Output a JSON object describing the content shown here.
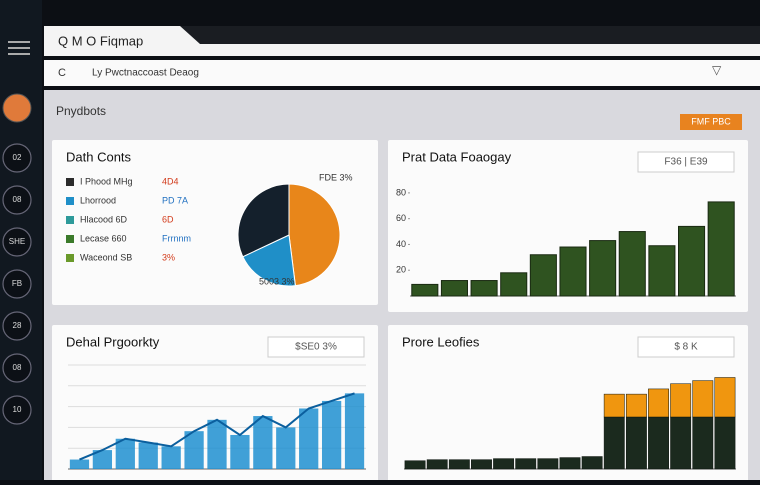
{
  "window": {
    "title": "Q M O Fiqmap",
    "address": "Ly Pwctnaccoast Deaog"
  },
  "page": {
    "heading": "Pnydbots",
    "button": "FMF PBC"
  },
  "sidebar": [
    "02",
    "08",
    "SHE",
    "FB",
    "28",
    "08",
    "10"
  ],
  "chart_data": [
    {
      "type": "pie",
      "title": "Dath Conts",
      "categories": [
        null,
        null,
        null
      ],
      "values": [
        48,
        20,
        32
      ],
      "colors": [
        "#e8861a",
        "#1f8fc8",
        "#14202c"
      ],
      "annotations": [
        "FDE 3%",
        "5003 3%"
      ],
      "legend_items": [
        {
          "label": "I Phood MHg",
          "value_text": "4D4",
          "color": "#2c2c2c"
        },
        {
          "label": "Lhorrood",
          "value_text": "PD 7A",
          "color": "#1f8fc8"
        },
        {
          "label": "Hlacood 6D",
          "value_text": "6D",
          "color": "#2d9a9a"
        },
        {
          "label": "Lecase 660",
          "value_text": "Frrnnm",
          "color": "#3b7a2a"
        },
        {
          "label": "Waceond SB",
          "value_text": "3%",
          "color": "#6a9a2a"
        }
      ]
    },
    {
      "type": "bar",
      "title": "Prat Data Foaogay",
      "badge": "F36 | E39",
      "categories": [
        null,
        null,
        null,
        null,
        null,
        null,
        null,
        null,
        null,
        null,
        null
      ],
      "values": [
        9,
        12,
        12,
        18,
        32,
        38,
        43,
        50,
        39,
        54,
        73
      ],
      "color": "#2f5320",
      "ylim": [
        0,
        90
      ],
      "yticks": [
        20,
        40,
        60,
        80
      ]
    },
    {
      "type": "area",
      "title": "Dehal Prgoorkty",
      "badge": "$SE0 3%",
      "categories": [
        null,
        null,
        null,
        null,
        null,
        null,
        null,
        null,
        null,
        null,
        null,
        null,
        null
      ],
      "values": [
        5,
        10,
        16,
        14,
        12,
        20,
        26,
        18,
        28,
        22,
        32,
        36,
        40
      ],
      "color": "#1e8fd0",
      "ylim": [
        0,
        55
      ]
    },
    {
      "type": "stacked",
      "title": "Prore Leofies",
      "badge": "$ 8 K",
      "categories": [
        null,
        null,
        null,
        null,
        null,
        null,
        null,
        null,
        null,
        null,
        null,
        null,
        null,
        null,
        null
      ],
      "series": [
        {
          "name": null,
          "color": "#1b2a1e",
          "values": [
            8,
            9,
            9,
            9,
            10,
            10,
            10,
            11,
            12,
            50,
            50,
            50,
            50,
            50,
            50
          ]
        },
        {
          "name": null,
          "color": "#f0960f",
          "values": [
            0,
            0,
            0,
            0,
            0,
            0,
            0,
            0,
            0,
            22,
            22,
            27,
            32,
            35,
            38
          ]
        }
      ],
      "ylim": [
        0,
        100
      ]
    }
  ]
}
